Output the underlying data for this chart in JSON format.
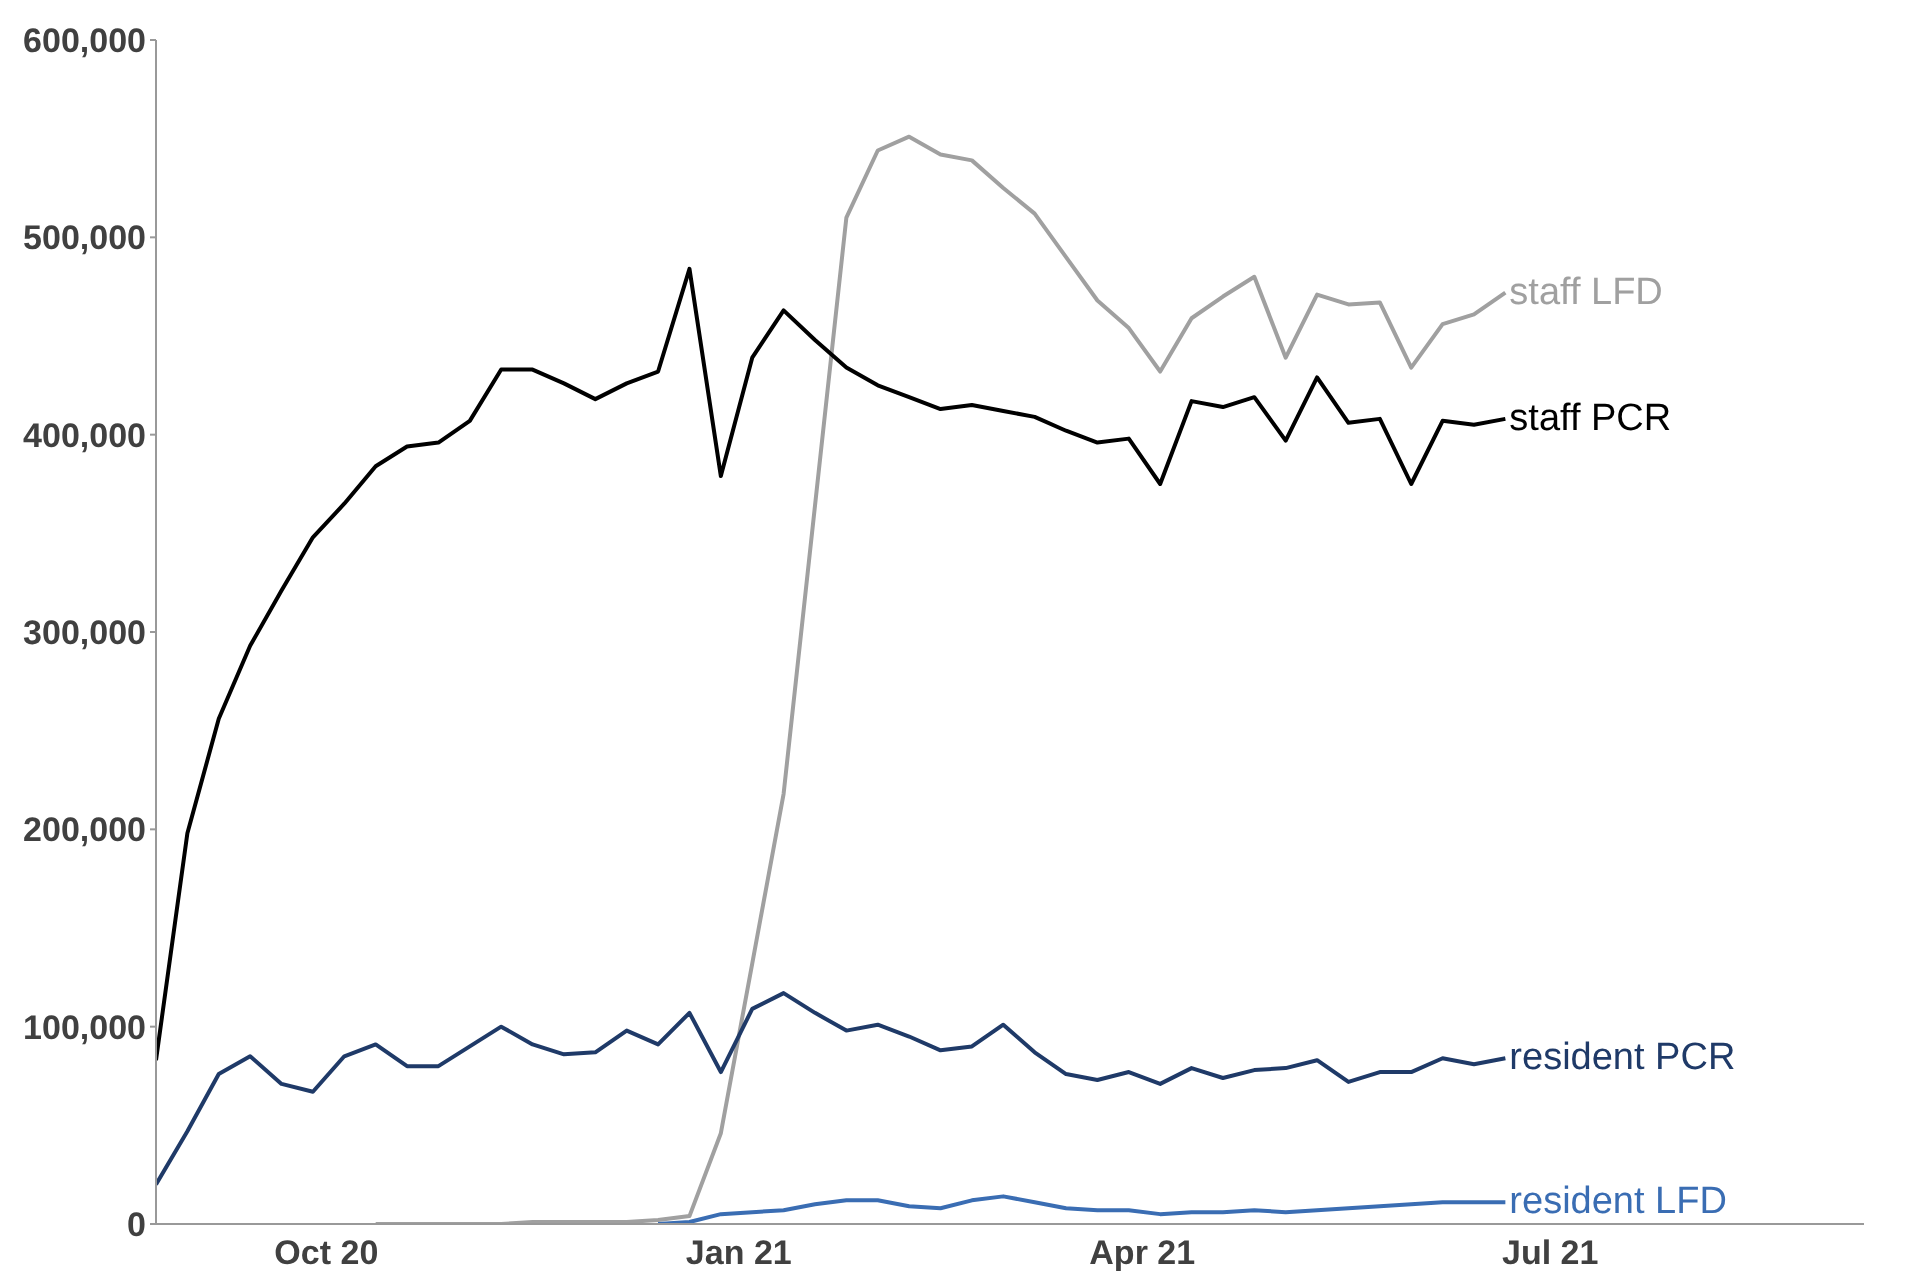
{
  "chart_data": {
    "type": "line",
    "x": [
      "2020-08-24",
      "2020-08-31",
      "2020-09-07",
      "2020-09-14",
      "2020-09-21",
      "2020-09-28",
      "2020-10-05",
      "2020-10-12",
      "2020-10-19",
      "2020-10-26",
      "2020-11-02",
      "2020-11-09",
      "2020-11-16",
      "2020-11-23",
      "2020-11-30",
      "2020-12-07",
      "2020-12-14",
      "2020-12-21",
      "2020-12-28",
      "2021-01-04",
      "2021-01-11",
      "2021-01-18",
      "2021-01-25",
      "2021-02-01",
      "2021-02-08",
      "2021-02-15",
      "2021-02-22",
      "2021-03-01",
      "2021-03-08",
      "2021-03-15",
      "2021-03-22",
      "2021-03-29",
      "2021-04-05",
      "2021-04-12",
      "2021-04-19",
      "2021-04-26",
      "2021-05-03",
      "2021-05-10",
      "2021-05-17",
      "2021-05-24",
      "2021-05-31",
      "2021-06-07",
      "2021-06-14",
      "2021-06-21"
    ],
    "series": [
      {
        "name": "staff LFD",
        "color": "#a0a0a0",
        "values": [
          null,
          null,
          null,
          null,
          null,
          null,
          null,
          0,
          0,
          0,
          0,
          0,
          1000,
          1000,
          1000,
          1000,
          2000,
          4000,
          46000,
          132000,
          218000,
          364000,
          510000,
          544000,
          551000,
          542000,
          539000,
          525000,
          512000,
          490000,
          468000,
          454000,
          432000,
          459000,
          470000,
          480000,
          439000,
          471000,
          466000,
          467000,
          434000,
          456000,
          461000,
          472000
        ]
      },
      {
        "name": "staff PCR",
        "color": "#000000",
        "values": [
          83000,
          198000,
          256000,
          293000,
          321000,
          348000,
          365000,
          384000,
          394000,
          396000,
          407000,
          433000,
          433000,
          426000,
          418000,
          426000,
          432000,
          484000,
          379000,
          439000,
          463000,
          448000,
          434000,
          425000,
          419000,
          413000,
          415000,
          412000,
          409000,
          402000,
          396000,
          398000,
          375000,
          417000,
          414000,
          419000,
          397000,
          429000,
          406000,
          408000,
          375000,
          407000,
          405000,
          408000
        ]
      },
      {
        "name": "resident PCR",
        "color": "#1f3a68",
        "values": [
          20000,
          47000,
          76000,
          85000,
          71000,
          67000,
          85000,
          91000,
          80000,
          80000,
          90000,
          100000,
          91000,
          86000,
          87000,
          98000,
          91000,
          107000,
          77000,
          109000,
          117000,
          107000,
          98000,
          101000,
          95000,
          88000,
          90000,
          101000,
          87000,
          76000,
          73000,
          77000,
          71000,
          79000,
          74000,
          78000,
          79000,
          83000,
          72000,
          77000,
          77000,
          84000,
          81000,
          84000
        ]
      },
      {
        "name": "resident LFD",
        "color": "#3a6db3",
        "values": [
          null,
          null,
          null,
          null,
          null,
          null,
          null,
          null,
          null,
          null,
          null,
          null,
          null,
          null,
          null,
          null,
          0,
          1000,
          5000,
          6000,
          7000,
          10000,
          12000,
          12000,
          9000,
          8000,
          12000,
          14000,
          11000,
          8000,
          7000,
          7000,
          5000,
          6000,
          6000,
          7000,
          6000,
          7000,
          8000,
          9000,
          10000,
          11000,
          11000,
          11000
        ]
      }
    ],
    "xlim": [
      "2020-08-24",
      "2021-09-09"
    ],
    "xticks": [
      {
        "value": "2020-10",
        "label": "Oct 20"
      },
      {
        "value": "2021-01",
        "label": "Jan 21"
      },
      {
        "value": "2021-04",
        "label": "Apr 21"
      },
      {
        "value": "2021-07",
        "label": "Jul 21"
      }
    ],
    "ylim": [
      0,
      600000
    ],
    "yticks": [
      {
        "value": 0,
        "label": "0"
      },
      {
        "value": 100000,
        "label": "100,000"
      },
      {
        "value": 200000,
        "label": "200,000"
      },
      {
        "value": 300000,
        "label": "300,000"
      },
      {
        "value": 400000,
        "label": "400,000"
      },
      {
        "value": 500000,
        "label": "500,000"
      },
      {
        "value": 600000,
        "label": "600,000"
      }
    ]
  }
}
